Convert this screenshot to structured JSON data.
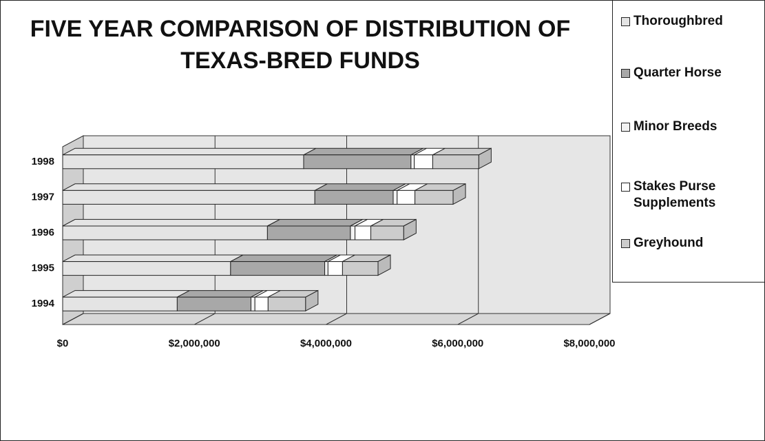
{
  "chart_data": {
    "type": "bar3d_stacked_horizontal",
    "title": "FIVE YEAR COMPARISON OF DISTRIBUTION OF TEXAS-BRED FUNDS",
    "categories": [
      "1994",
      "1995",
      "1996",
      "1997",
      "1998"
    ],
    "series": [
      {
        "name": "Thoroughbred",
        "color": "#e4e4e4",
        "values": [
          1740000,
          2550000,
          3110000,
          3830000,
          3660000
        ]
      },
      {
        "name": "Quarter Horse",
        "color": "#a8a8a8",
        "values": [
          1120000,
          1430000,
          1260000,
          1190000,
          1630000
        ]
      },
      {
        "name": "Minor Breeds",
        "color": "#f2f2f2",
        "values": [
          60000,
          50000,
          70000,
          60000,
          50000
        ]
      },
      {
        "name": "Stakes Purse Supplements",
        "color": "#ffffff",
        "values": [
          200000,
          220000,
          240000,
          270000,
          280000
        ]
      },
      {
        "name": "Greyhound",
        "color": "#cccccc",
        "values": [
          570000,
          540000,
          500000,
          580000,
          700000
        ]
      }
    ],
    "xlim": [
      0,
      8000000
    ],
    "xticks": [
      {
        "value": 0,
        "label": "$0"
      },
      {
        "value": 2000000,
        "label": "$2,000,000"
      },
      {
        "value": 4000000,
        "label": "$4,000,000"
      },
      {
        "value": 6000000,
        "label": "$6,000,000"
      },
      {
        "value": 8000000,
        "label": "$8,000,000"
      }
    ],
    "grid": true,
    "legend": "right"
  }
}
